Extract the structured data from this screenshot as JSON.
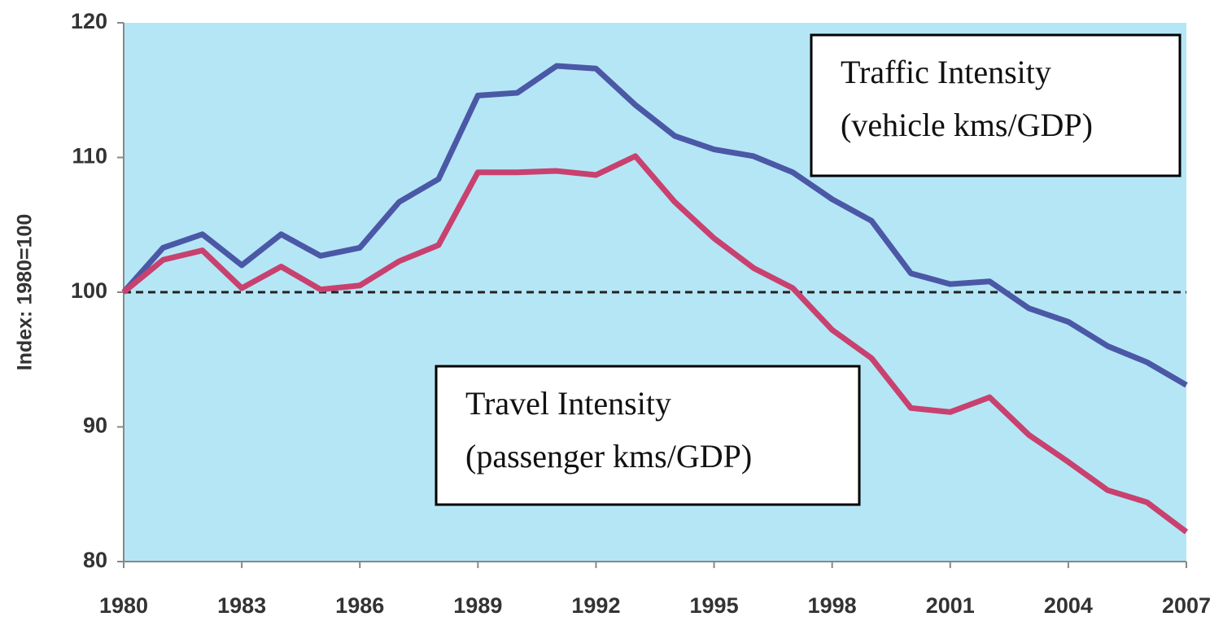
{
  "chart_data": {
    "type": "line",
    "y_label": "Index: 1980=100",
    "x": [
      1980,
      1981,
      1982,
      1983,
      1984,
      1985,
      1986,
      1987,
      1988,
      1989,
      1990,
      1991,
      1992,
      1993,
      1994,
      1995,
      1996,
      1997,
      1998,
      1999,
      2000,
      2001,
      2002,
      2003,
      2004,
      2005,
      2006,
      2007
    ],
    "series": [
      {
        "name": "Traffic Intensity",
        "label": "(vehicle kms/GDP)",
        "color": "#4a58a6",
        "values": [
          100,
          103.3,
          104.3,
          102.0,
          104.3,
          102.7,
          103.3,
          106.7,
          108.4,
          114.6,
          114.8,
          116.8,
          116.6,
          113.9,
          111.6,
          110.6,
          110.1,
          108.9,
          106.9,
          105.3,
          101.4,
          100.6,
          100.8,
          98.8,
          97.8,
          96.0,
          94.8,
          93.1
        ]
      },
      {
        "name": "Travel Intensity",
        "label": "(passenger kms/GDP)",
        "color": "#c8416f",
        "values": [
          100,
          102.4,
          103.1,
          100.3,
          101.9,
          100.2,
          100.5,
          102.3,
          103.5,
          108.9,
          108.9,
          109.0,
          108.7,
          110.1,
          106.7,
          104.0,
          101.8,
          100.3,
          97.2,
          95.1,
          91.4,
          91.1,
          92.2,
          89.4,
          87.4,
          85.3,
          84.4,
          82.2
        ]
      }
    ],
    "reference_line": 100,
    "xlim": [
      1980,
      2007
    ],
    "xticks": [
      1980,
      1983,
      1986,
      1989,
      1992,
      1995,
      1998,
      2001,
      2004,
      2007
    ],
    "ylim": [
      80,
      120
    ],
    "yticks": [
      80,
      90,
      100,
      110,
      120
    ],
    "background": "#b5e6f6"
  }
}
